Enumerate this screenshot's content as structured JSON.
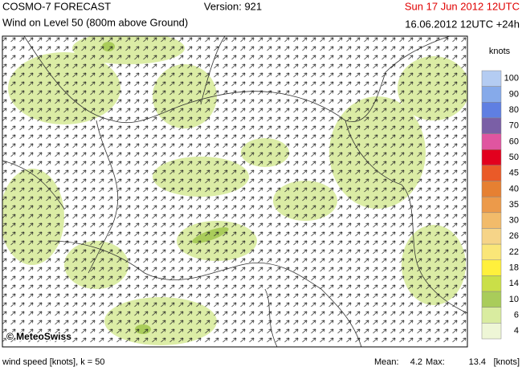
{
  "header": {
    "product": "COSMO-7 FORECAST",
    "version": "Version: 921",
    "valid_time": "Sun 17 Jun 2012 12UTC",
    "subtitle": "Wind on Level 50 (800m above Ground)",
    "run": "16.06.2012 12UTC +24h"
  },
  "map": {
    "credit": "© MeteoSwiss"
  },
  "legend": {
    "title": "knots",
    "items": [
      {
        "value": 100,
        "color": "#b4ccf2"
      },
      {
        "value": 90,
        "color": "#86aaea"
      },
      {
        "value": 80,
        "color": "#5f7fe2"
      },
      {
        "value": 70,
        "color": "#7a5fa6"
      },
      {
        "value": 60,
        "color": "#e055a0"
      },
      {
        "value": 50,
        "color": "#e2001e"
      },
      {
        "value": 45,
        "color": "#ea5a28"
      },
      {
        "value": 40,
        "color": "#e68032"
      },
      {
        "value": 35,
        "color": "#ec9a4a"
      },
      {
        "value": 30,
        "color": "#f2bb6a"
      },
      {
        "value": 26,
        "color": "#f6d488"
      },
      {
        "value": 22,
        "color": "#fae678"
      },
      {
        "value": 18,
        "color": "#fff03c"
      },
      {
        "value": 14,
        "color": "#cadf48"
      },
      {
        "value": 10,
        "color": "#a9cc5a"
      },
      {
        "value": 6,
        "color": "#d9eca0"
      },
      {
        "value": 4,
        "color": "#eef6d6"
      }
    ]
  },
  "footer": {
    "caption": "wind speed [knots], k = 50",
    "mean_label": "Mean:",
    "mean": 4.2,
    "max_label": "Max:",
    "max": 13.4,
    "unit": "[knots]"
  }
}
